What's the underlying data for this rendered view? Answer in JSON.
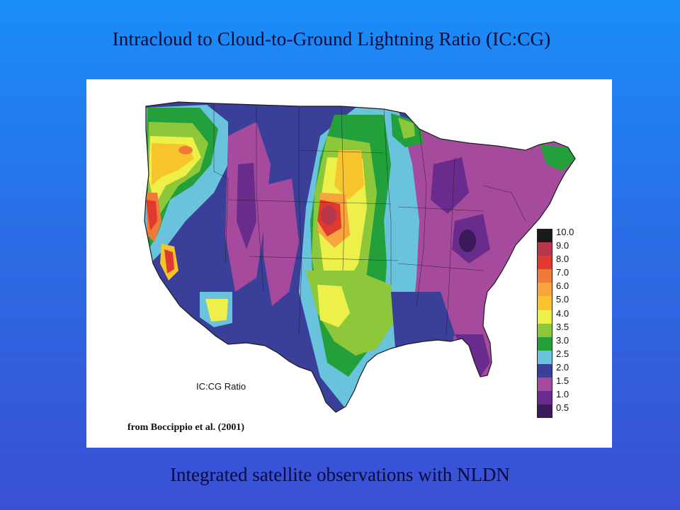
{
  "slide": {
    "title": "Intracloud to Cloud-to-Ground Lightning Ratio (IC:CG)",
    "subtitle": "Integrated satellite observations with NLDN"
  },
  "figure": {
    "map_label": "IC:CG Ratio",
    "credit": "from Boccippio et al. (2001)",
    "legend": [
      {
        "label": "10.0",
        "color": "#1a1a1a"
      },
      {
        "label": "9.0",
        "color": "#b8364a"
      },
      {
        "label": "8.0",
        "color": "#e03a30"
      },
      {
        "label": "7.0",
        "color": "#f07a3a"
      },
      {
        "label": "6.0",
        "color": "#f7a53c"
      },
      {
        "label": "5.0",
        "color": "#f8c42c"
      },
      {
        "label": "4.0",
        "color": "#eef04a"
      },
      {
        "label": "3.5",
        "color": "#8cc83a"
      },
      {
        "label": "3.0",
        "color": "#23a03c"
      },
      {
        "label": "2.5",
        "color": "#6ac3dc"
      },
      {
        "label": "2.0",
        "color": "#3a3f9a"
      },
      {
        "label": "1.5",
        "color": "#a64a9e"
      },
      {
        "label": "1.0",
        "color": "#6a2c8c"
      },
      {
        "label": "0.5",
        "color": "#3a1a5a"
      }
    ]
  }
}
